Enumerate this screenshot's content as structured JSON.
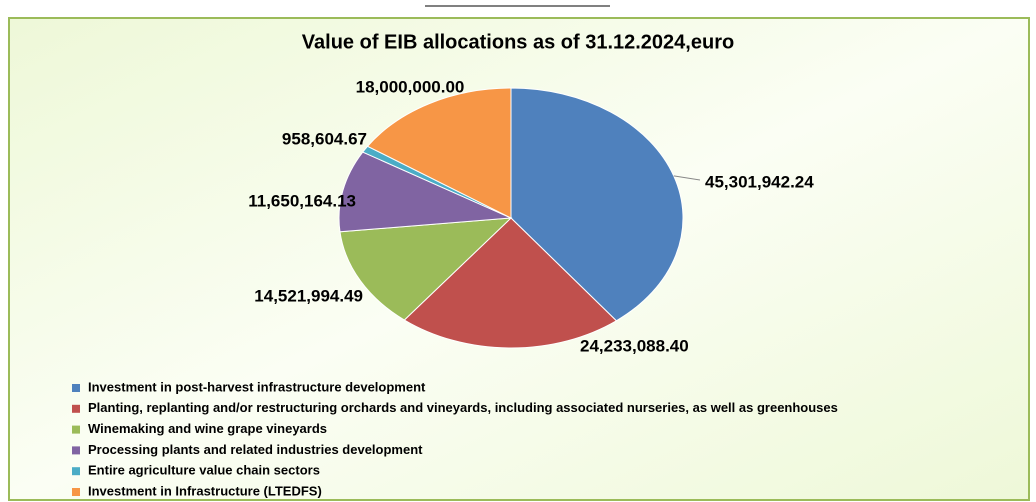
{
  "chart_data": {
    "type": "pie",
    "title": "Value of EIB allocations as of 31.12.2024,euro",
    "categories": [
      "Investment in post-harvest infrastructure development",
      "Planting, replanting and/or restructuring orchards and vineyards, including associated nurseries, as well as greenhouses",
      "Winemaking and wine grape vineyards",
      "Processing plants and related industries development",
      "Entire agriculture value chain sectors",
      "Investment in Infrastructure (LTEDFS)"
    ],
    "values": [
      45301942.24,
      24233088.4,
      14521994.49,
      11650164.13,
      958604.67,
      18000000.0
    ],
    "value_labels": [
      "45,301,942.24",
      "24,233,088.40",
      "14,521,994.49",
      "11,650,164.13",
      "958,604.67",
      "18,000,000.00"
    ],
    "colors": [
      "#4f81bd",
      "#c0504d",
      "#9bbb59",
      "#8064a2",
      "#4bacc6",
      "#f79646"
    ],
    "legend": "bottom"
  }
}
